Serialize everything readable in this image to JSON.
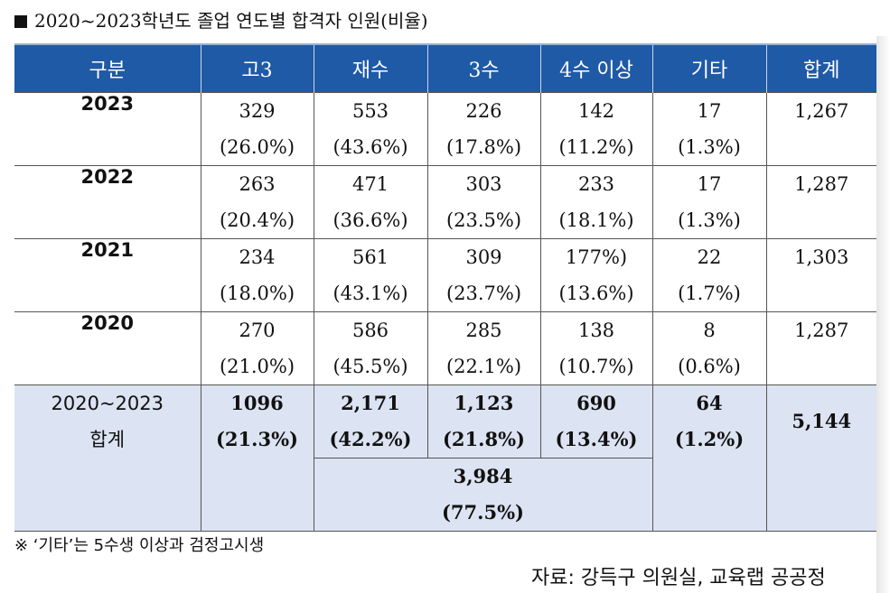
{
  "title": "2020~2023학년도 졸업 연도별 합격자 인원(비율)",
  "headers": [
    "구분",
    "고3",
    "재수",
    "3수",
    "4수 이상",
    "기타",
    "합계"
  ],
  "rows": [
    {
      "year": "2023",
      "g3": [
        "329",
        "(26.0%)"
      ],
      "jaesu": [
        "553",
        "(43.6%)"
      ],
      "samsu": [
        "226",
        "(17.8%)"
      ],
      "sasu": [
        "142",
        "(11.2%)"
      ],
      "etc": [
        "17",
        "(1.3%)"
      ],
      "total": "1,267"
    },
    {
      "year": "2022",
      "g3": [
        "263",
        "(20.4%)"
      ],
      "jaesu": [
        "471",
        "(36.6%)"
      ],
      "samsu": [
        "303",
        "(23.5%)"
      ],
      "sasu": [
        "233",
        "(18.1%)"
      ],
      "etc": [
        "17",
        "(1.3%)"
      ],
      "total": "1,287"
    },
    {
      "year": "2021",
      "g3": [
        "234",
        "(18.0%)"
      ],
      "jaesu": [
        "561",
        "(43.1%)"
      ],
      "samsu": [
        "309",
        "(23.7%)"
      ],
      "sasu": [
        "177%)",
        "(13.6%)"
      ],
      "etc": [
        "22",
        "(1.7%)"
      ],
      "total": "1,303"
    },
    {
      "year": "2020",
      "g3": [
        "270",
        "(21.0%)"
      ],
      "jaesu": [
        "586",
        "(45.5%)"
      ],
      "samsu": [
        "285",
        "(22.1%)"
      ],
      "sasu": [
        "138",
        "(10.7%)"
      ],
      "etc": [
        "8",
        "(0.6%)"
      ],
      "total": "1,287"
    }
  ],
  "summary": {
    "label_line1": "2020~2023",
    "label_line2": "합계",
    "g3": [
      "1096",
      "(21.3%)"
    ],
    "jaesu": [
      "2,171",
      "(42.2%)"
    ],
    "samsu": [
      "1,123",
      "(21.8%)"
    ],
    "sasu": [
      "690",
      "(13.4%)"
    ],
    "etc": [
      "64",
      "(1.2%)"
    ],
    "total": "5,144",
    "repeaters": [
      "3,984",
      "(77.5%)"
    ]
  },
  "note": "※ ‘기타’는 5수생 이상과 검정고시생",
  "source": "자료: 강득구 의원실, 교육랩 공공정",
  "colors": {
    "header_bg": "#1f5aa6",
    "summary_bg": "#dce3f2"
  }
}
